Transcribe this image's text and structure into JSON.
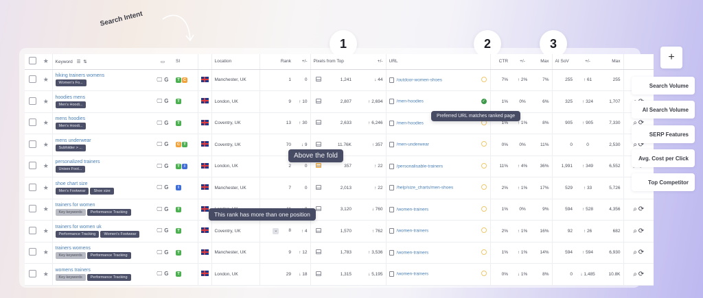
{
  "annotations": {
    "search_intent": "Search Intent",
    "badges": [
      "1",
      "2",
      "3"
    ],
    "tooltip_above_fold": "Above the fold",
    "tooltip_preferred_url": "Preferred URL matches ranked page",
    "tooltip_multi_rank": "This rank has more than one position"
  },
  "columns": {
    "keyword": "Keyword",
    "si": "SI",
    "location": "Location",
    "rank": "Rank",
    "rank_change": "+/-",
    "pixels": "Pixels from Top",
    "pixels_change": "+/-",
    "url": "URL",
    "ctr": "CTR",
    "ctr_change": "+/-",
    "ctr_max": "Max",
    "ai_sov": "AI SoV",
    "ai_change": "+/-",
    "ai_max": "Max"
  },
  "rows": [
    {
      "keyword": "hiking trainers womens",
      "tags": [
        {
          "t": "Women's Fo...",
          "grey": false
        }
      ],
      "si": [
        "T",
        "C"
      ],
      "location": "Manchester, UK",
      "rank": "1",
      "rank_chg": "0",
      "rank_dir": "zero",
      "pixels": "1,241",
      "pix_chg": "44",
      "pix_dir": "down",
      "url": "/outdoor-women-shoes",
      "pref": "none",
      "ctr": "7%",
      "ctr_chg": "2%",
      "ctr_dir": "up",
      "ctr_max": "7%",
      "ai": "255",
      "ai_chg": "61",
      "ai_dir": "up",
      "ai_max": "255"
    },
    {
      "keyword": "hoodies mens",
      "tags": [
        {
          "t": "Men's Hoodi...",
          "grey": false
        }
      ],
      "si": [
        "T"
      ],
      "location": "London, UK",
      "rank": "9",
      "rank_chg": "10",
      "rank_dir": "up",
      "pixels": "2,807",
      "pix_chg": "2,694",
      "pix_dir": "up",
      "url": "/men-hoodies",
      "pref": "ok",
      "ctr": "1%",
      "ctr_chg": "0%",
      "ctr_dir": "zero",
      "ctr_max": "6%",
      "ai": "325",
      "ai_chg": "324",
      "ai_dir": "up",
      "ai_max": "1,707"
    },
    {
      "keyword": "mens hoodies",
      "tags": [
        {
          "t": "Men's Hoodi...",
          "grey": false
        }
      ],
      "si": [
        "T"
      ],
      "location": "Coventry, UK",
      "rank": "13",
      "rank_chg": "30",
      "rank_dir": "up",
      "pixels": "2,633",
      "pix_chg": "6,246",
      "pix_dir": "up",
      "url": "/men-hoodies",
      "pref": "none",
      "ctr": "1%",
      "ctr_chg": "1%",
      "ctr_dir": "up",
      "ctr_max": "8%",
      "ai": "905",
      "ai_chg": "905",
      "ai_dir": "up",
      "ai_max": "7,330"
    },
    {
      "keyword": "mens underwear",
      "tags": [
        {
          "t": "Subfolder > ...",
          "grey": false
        }
      ],
      "si": [
        "C",
        "T"
      ],
      "location": "Coventry, UK",
      "rank": "70",
      "rank_chg": "9",
      "rank_dir": "down",
      "pixels": "11.76K",
      "pix_chg": "357",
      "pix_dir": "up",
      "url": "/men-underwear",
      "pref": "none",
      "ctr": "0%",
      "ctr_chg": "0%",
      "ctr_dir": "zero",
      "ctr_max": "11%",
      "ai": "0",
      "ai_chg": "0",
      "ai_dir": "zero",
      "ai_max": "2,530"
    },
    {
      "keyword": "personalized trainers",
      "tags": [
        {
          "t": "Unisex Foot...",
          "grey": false
        }
      ],
      "si": [
        "T",
        "I"
      ],
      "location": "London, UK",
      "rank": "2",
      "rank_chg": "0",
      "rank_dir": "zero",
      "pixels": "357",
      "pix_chg": "22",
      "pix_dir": "up",
      "url": "/personalisable-trainers",
      "pref": "none",
      "ctr": "11%",
      "ctr_chg": "4%",
      "ctr_dir": "up",
      "ctr_max": "36%",
      "ai": "1,991",
      "ai_chg": "349",
      "ai_dir": "up",
      "ai_max": "6,552"
    },
    {
      "keyword": "shoe chart size",
      "tags": [
        {
          "t": "Men's Footwear",
          "grey": false
        },
        {
          "t": "Shoe size",
          "grey": false
        }
      ],
      "si": [
        "I"
      ],
      "location": "Manchester, UK",
      "rank": "7",
      "rank_chg": "0",
      "rank_dir": "zero",
      "pixels": "2,013",
      "pix_chg": "22",
      "pix_dir": "up",
      "url": "/help/size_charts/men-shoes",
      "pref": "none",
      "ctr": "2%",
      "ctr_chg": "1%",
      "ctr_dir": "up",
      "ctr_max": "17%",
      "ai": "529",
      "ai_chg": "33",
      "ai_dir": "up",
      "ai_max": "5,726"
    },
    {
      "keyword": "trainers for women",
      "tags": [
        {
          "t": "Key keywords",
          "grey": true
        },
        {
          "t": "Performance Tracking",
          "grey": false
        }
      ],
      "si": [
        "T"
      ],
      "location": "London, UK",
      "rank": "11",
      "rank_chg": "8",
      "rank_dir": "down",
      "pixels": "3,120",
      "pix_chg": "760",
      "pix_dir": "down",
      "url": "/women-trainers",
      "pref": "none",
      "ctr": "1%",
      "ctr_chg": "0%",
      "ctr_dir": "zero",
      "ctr_max": "9%",
      "ai": "594",
      "ai_chg": "528",
      "ai_dir": "up",
      "ai_max": "4,356"
    },
    {
      "keyword": "trainers for women uk",
      "tags": [
        {
          "t": "Performance Tracking",
          "grey": false
        },
        {
          "t": "Women's Footwear",
          "grey": false
        }
      ],
      "si": [
        "T"
      ],
      "location": "Coventry, UK",
      "rank": "8",
      "rank_chg": "4",
      "rank_dir": "up",
      "pixels": "1,570",
      "pix_chg": "762",
      "pix_dir": "up",
      "url": "/women-trainers",
      "pref": "none",
      "ctr": "2%",
      "ctr_chg": "1%",
      "ctr_dir": "up",
      "ctr_max": "16%",
      "ai": "92",
      "ai_chg": "26",
      "ai_dir": "up",
      "ai_max": "682",
      "multi": true
    },
    {
      "keyword": "trainers womens",
      "tags": [
        {
          "t": "Key keywords",
          "grey": true
        },
        {
          "t": "Performance Tracking",
          "grey": false
        }
      ],
      "si": [
        "T"
      ],
      "location": "Manchester, UK",
      "rank": "9",
      "rank_chg": "12",
      "rank_dir": "up",
      "pixels": "1,783",
      "pix_chg": "3,536",
      "pix_dir": "up",
      "url": "/women-trainers",
      "pref": "none",
      "ctr": "1%",
      "ctr_chg": "1%",
      "ctr_dir": "up",
      "ctr_max": "14%",
      "ai": "594",
      "ai_chg": "594",
      "ai_dir": "up",
      "ai_max": "6,930"
    },
    {
      "keyword": "womens trainers",
      "tags": [
        {
          "t": "Key keywords",
          "grey": true
        },
        {
          "t": "Performance Tracking",
          "grey": false
        }
      ],
      "si": [
        "T"
      ],
      "location": "London, UK",
      "rank": "29",
      "rank_chg": "18",
      "rank_dir": "down",
      "pixels": "1,315",
      "pix_chg": "5,195",
      "pix_dir": "down",
      "url": "/women-trainers",
      "pref": "none",
      "ctr": "0%",
      "ctr_chg": "1%",
      "ctr_dir": "down",
      "ctr_max": "8%",
      "ai": "0",
      "ai_chg": "1,485",
      "ai_dir": "down",
      "ai_max": "10.8K"
    }
  ],
  "side_panel": {
    "add_label": "+",
    "buttons": [
      "Search Volume",
      "AI Search Volume",
      "SERP Features",
      "Avg. Cost per Click",
      "Top Competitor"
    ]
  },
  "colors": {
    "up": "#2e9c5a",
    "down": "#d9534f",
    "link": "#4a7fb5",
    "tag": "#4b4f68",
    "tooltip": "#474b63"
  }
}
